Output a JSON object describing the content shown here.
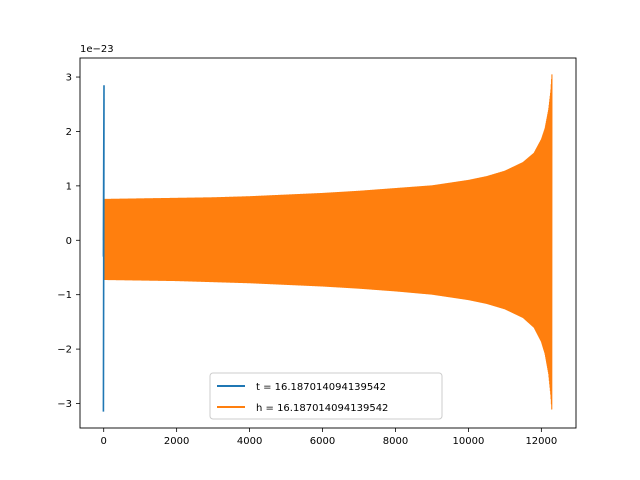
{
  "chart_data": {
    "type": "line",
    "title": "",
    "xlabel": "",
    "ylabel": "",
    "y_offset_label": "1e−23",
    "xlim": [
      -650,
      12950
    ],
    "ylim": [
      -3.45,
      3.35
    ],
    "xticks": [
      0,
      2000,
      4000,
      6000,
      8000,
      10000,
      12000
    ],
    "xtick_labels": [
      "0",
      "2000",
      "4000",
      "6000",
      "8000",
      "10000",
      "12000"
    ],
    "yticks": [
      -3,
      -2,
      -1,
      0,
      1,
      2,
      3
    ],
    "ytick_labels": [
      "−3",
      "−2",
      "−1",
      "0",
      "1",
      "2",
      "3"
    ],
    "grid": false,
    "legend_position": "lower center",
    "series": [
      {
        "name": "t = 16.187014094139542",
        "color": "#1f77b4",
        "description": "waveform against sample index",
        "x": [
          0,
          0,
          0,
          0,
          0
        ],
        "y": [
          0,
          2.85,
          -3.15,
          2.6,
          -0.3
        ]
      },
      {
        "name": "h = 16.187014094139542",
        "color": "#ff7f0e",
        "description": "chirp envelope with increasing frequency toward merger",
        "x": [
          0,
          1000,
          2000,
          3000,
          4000,
          5000,
          6000,
          7000,
          8000,
          9000,
          10000,
          10500,
          11000,
          11500,
          11800,
          12000,
          12100,
          12200,
          12260,
          12290
        ],
        "y_upper": [
          0.75,
          0.76,
          0.77,
          0.78,
          0.8,
          0.83,
          0.86,
          0.9,
          0.95,
          1.0,
          1.1,
          1.17,
          1.27,
          1.43,
          1.6,
          1.85,
          2.05,
          2.4,
          2.75,
          3.05
        ],
        "y_lower": [
          -0.72,
          -0.73,
          -0.74,
          -0.76,
          -0.78,
          -0.81,
          -0.84,
          -0.88,
          -0.93,
          -0.99,
          -1.09,
          -1.16,
          -1.26,
          -1.42,
          -1.6,
          -1.86,
          -2.08,
          -2.45,
          -2.85,
          -3.15
        ]
      }
    ]
  }
}
